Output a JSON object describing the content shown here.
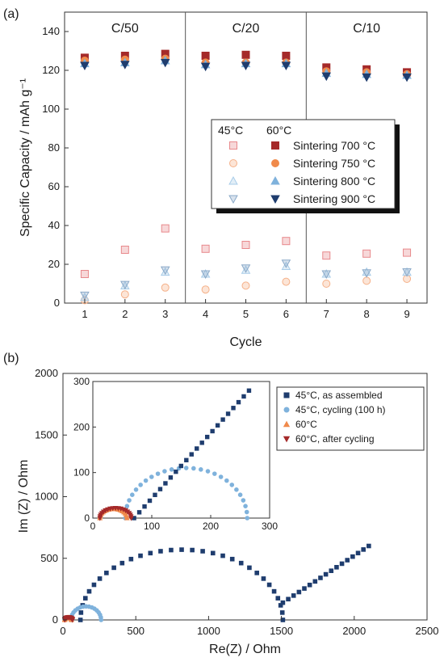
{
  "chart_data": [
    {
      "panel": "(a)",
      "type": "scatter",
      "xlabel": "Cycle",
      "ylabel": "Specific Capacity / mAh g⁻¹",
      "xlim": [
        0.5,
        9.5
      ],
      "ylim": [
        0,
        150
      ],
      "x_ticks": [
        "1",
        "2",
        "3",
        "4",
        "5",
        "6",
        "7",
        "8",
        "9"
      ],
      "y_ticks": [
        "0",
        "20",
        "40",
        "60",
        "80",
        "100",
        "120",
        "140"
      ],
      "regions": [
        {
          "label": "C/50",
          "from": 0.5,
          "to": 3.5
        },
        {
          "label": "C/20",
          "from": 3.5,
          "to": 6.5
        },
        {
          "label": "C/10",
          "from": 6.5,
          "to": 9.5
        }
      ],
      "legend": {
        "col1": "45°C",
        "col2": "60°C",
        "placement": "center-right"
      },
      "series": [
        {
          "name": "Sintering 700 °C",
          "temp": "45°C",
          "marker": "square",
          "color": "#e8898c",
          "filled": false,
          "x": [
            1,
            2,
            3,
            4,
            5,
            6,
            7,
            8,
            9
          ],
          "values": [
            15,
            27.5,
            38.5,
            28,
            30,
            32,
            24.5,
            25.5,
            26
          ]
        },
        {
          "name": "Sintering 750 °C",
          "temp": "45°C",
          "marker": "circle",
          "color": "#f5b088",
          "filled": false,
          "x": [
            1,
            2,
            3,
            4,
            5,
            6,
            7,
            8,
            9
          ],
          "values": [
            1.5,
            4.5,
            8,
            7,
            9,
            11,
            10,
            11.5,
            12.5
          ]
        },
        {
          "name": "Sintering 800 °C",
          "temp": "45°C",
          "marker": "triangle-up",
          "color": "#a8cce8",
          "filled": false,
          "x": [
            1,
            2,
            3,
            4,
            5,
            6,
            7,
            8,
            9
          ],
          "values": [
            3,
            9,
            16,
            15,
            17,
            19,
            15,
            16,
            16
          ]
        },
        {
          "name": "Sintering 900 °C",
          "temp": "45°C",
          "marker": "triangle-down",
          "color": "#8aa9c8",
          "filled": false,
          "x": [
            1,
            2,
            3,
            4,
            5,
            6,
            7,
            8,
            9
          ],
          "values": [
            4,
            9.5,
            17,
            15,
            18,
            20.5,
            15,
            15.5,
            16
          ]
        },
        {
          "name": "Sintering 700 °C",
          "temp": "60°C",
          "marker": "square",
          "color": "#a52a2a",
          "filled": true,
          "x": [
            1,
            2,
            3,
            4,
            5,
            6,
            7,
            8,
            9
          ],
          "values": [
            126.5,
            127.5,
            128.5,
            127.5,
            128,
            127.5,
            121.5,
            120.5,
            119
          ]
        },
        {
          "name": "Sintering 750 °C",
          "temp": "60°C",
          "marker": "circle",
          "color": "#f08a4b",
          "filled": true,
          "x": [
            1,
            2,
            3,
            4,
            5,
            6,
            7,
            8,
            9
          ],
          "values": [
            125,
            125.5,
            126,
            124,
            124,
            124,
            119.5,
            119,
            118
          ]
        },
        {
          "name": "Sintering 800 °C",
          "temp": "60°C",
          "marker": "triangle-up",
          "color": "#7fb2dc",
          "filled": true,
          "x": [
            1,
            2,
            3,
            4,
            5,
            6,
            7,
            8,
            9
          ],
          "values": [
            123.5,
            124,
            125,
            123,
            123.5,
            123.5,
            118.5,
            118,
            117.5
          ]
        },
        {
          "name": "Sintering 900 °C",
          "temp": "60°C",
          "marker": "triangle-down",
          "color": "#1f3d6e",
          "filled": true,
          "x": [
            1,
            2,
            3,
            4,
            5,
            6,
            7,
            8,
            9
          ],
          "values": [
            122.5,
            123,
            124,
            122,
            122.5,
            122.5,
            117,
            116.5,
            116.5
          ]
        }
      ]
    },
    {
      "panel": "(b)",
      "type": "scatter",
      "xlabel": "Re(Z) / Ohm",
      "ylabel": "Im (Z) / Ohm",
      "xlim": [
        0,
        2500
      ],
      "ylim": [
        0,
        2000
      ],
      "x_ticks": [
        "0",
        "500",
        "1000",
        "1500",
        "2000",
        "2500"
      ],
      "y_ticks": [
        "0",
        "500",
        "1000",
        "1500",
        "2000"
      ],
      "legend_placement": "top-right",
      "series": [
        {
          "name": "45°C, as assembled",
          "marker": "square",
          "color": "#1f3d6e",
          "type": "arc-line",
          "arc": {
            "r0": 120,
            "r1": 1510,
            "ymin": 0,
            "peak": 570
          },
          "tail": {
            "x": [
              1510,
              2100
            ],
            "y": [
              140,
              600
            ]
          }
        },
        {
          "name": "45°C, cycling (100 h)",
          "marker": "circle",
          "color": "#7fb2dc",
          "type": "arc",
          "arc": {
            "r0": 55,
            "r1": 262,
            "peak": 110
          },
          "tail": {
            "x": [
              262,
              275
            ],
            "y": [
              5,
              8
            ]
          }
        },
        {
          "name": "60°C",
          "marker": "triangle-up",
          "color": "#f08a4b",
          "type": "arc",
          "arc": {
            "r0": 12,
            "r1": 58,
            "peak": 20
          }
        },
        {
          "name": "60°C, after cycling",
          "marker": "triangle-down",
          "color": "#a52a2a",
          "type": "arc",
          "arc": {
            "r0": 12,
            "r1": 65,
            "peak": 22
          }
        }
      ],
      "inset": {
        "xlim": [
          0,
          300
        ],
        "ylim": [
          0,
          300
        ],
        "x_ticks": [
          "0",
          "100",
          "200",
          "300"
        ],
        "y_ticks": [
          "0",
          "100",
          "200",
          "300"
        ],
        "assembled_line": {
          "x": [
            70,
            265
          ],
          "y": [
            0,
            280
          ]
        }
      }
    }
  ]
}
